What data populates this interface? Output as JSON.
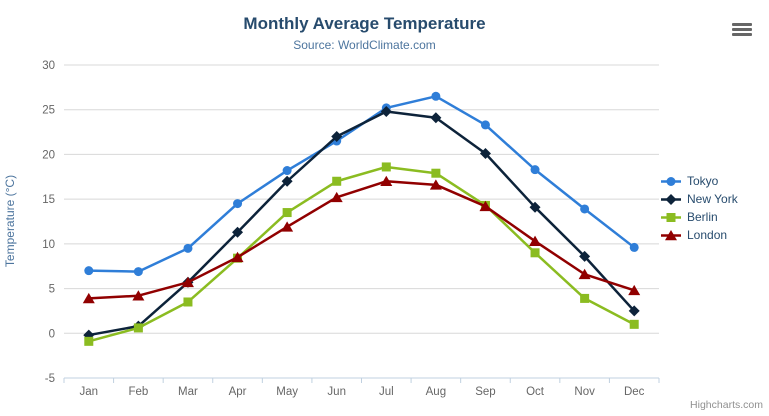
{
  "header": {
    "title": "Monthly Average Temperature",
    "subtitle": "Source: WorldClimate.com"
  },
  "context_menu": {
    "icon": "hamburger-icon"
  },
  "credits": {
    "label": "Highcharts.com"
  },
  "chart_data": {
    "type": "line",
    "title": "Monthly Average Temperature",
    "subtitle": "Source: WorldClimate.com",
    "xlabel": "",
    "ylabel": "Temperature (°C)",
    "categories": [
      "Jan",
      "Feb",
      "Mar",
      "Apr",
      "May",
      "Jun",
      "Jul",
      "Aug",
      "Sep",
      "Oct",
      "Nov",
      "Dec"
    ],
    "ylim": [
      -5,
      30
    ],
    "yticks": [
      -5,
      0,
      5,
      10,
      15,
      20,
      25,
      30
    ],
    "grid": "horizontal",
    "legend_position": "right",
    "series": [
      {
        "name": "Tokyo",
        "color": "#2f7ed8",
        "marker": "circle",
        "values": [
          7.0,
          6.9,
          9.5,
          14.5,
          18.2,
          21.5,
          25.2,
          26.5,
          23.3,
          18.3,
          13.9,
          9.6
        ]
      },
      {
        "name": "New York",
        "color": "#0d233a",
        "marker": "diamond",
        "values": [
          -0.2,
          0.8,
          5.7,
          11.3,
          17.0,
          22.0,
          24.8,
          24.1,
          20.1,
          14.1,
          8.6,
          2.5
        ]
      },
      {
        "name": "Berlin",
        "color": "#8bbc21",
        "marker": "square",
        "values": [
          -0.9,
          0.6,
          3.5,
          8.4,
          13.5,
          17.0,
          18.6,
          17.9,
          14.3,
          9.0,
          3.9,
          1.0
        ]
      },
      {
        "name": "London",
        "color": "#910000",
        "marker": "triangle",
        "values": [
          3.9,
          4.2,
          5.7,
          8.5,
          11.9,
          15.2,
          17.0,
          16.6,
          14.2,
          10.3,
          6.6,
          4.8
        ]
      }
    ],
    "colors": {
      "grid_line": "#d8d8d8",
      "axis_line": "#c0d0e0",
      "tick_mark": "#c0d0e0",
      "tick_label": "#666666",
      "title": "#274b6d",
      "subtitle": "#4d759e",
      "axis_title": "#4d759e",
      "legend_text": "#274b6d",
      "credits_text": "#909090"
    }
  }
}
